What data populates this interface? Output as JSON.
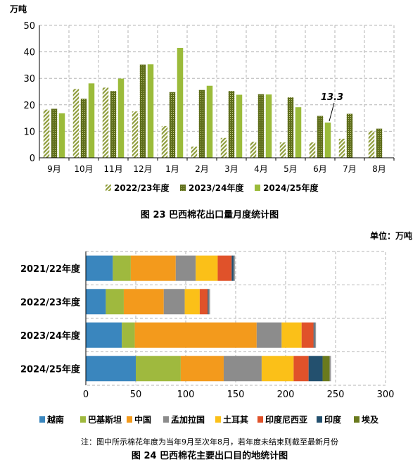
{
  "chart_data": [
    {
      "type": "bar",
      "ylabel": "万吨",
      "ylim": [
        0,
        50
      ],
      "yticks": [
        0,
        10,
        20,
        30,
        40,
        50
      ],
      "grid": true,
      "legend_position": "bottom",
      "categories": [
        "9月",
        "10月",
        "11月",
        "12月",
        "1月",
        "2月",
        "3月",
        "4月",
        "5月",
        "6月",
        "7月",
        "8月"
      ],
      "series": [
        {
          "name": "2022/23年度",
          "color": "#9aa84a",
          "pattern": "hatch",
          "values": [
            18.2,
            26.0,
            26.5,
            17.5,
            12.0,
            4.2,
            7.5,
            6.0,
            5.8,
            5.8,
            7.2,
            10.2
          ]
        },
        {
          "name": "2023/24年度",
          "color": "#6b7a22",
          "pattern": "dots",
          "values": [
            18.5,
            22.3,
            25.2,
            35.2,
            24.8,
            25.6,
            25.2,
            24.0,
            22.8,
            15.8,
            16.6,
            11.0
          ]
        },
        {
          "name": "2024/25年度",
          "color": "#9bbb3a",
          "pattern": "solid",
          "values": [
            16.8,
            28.1,
            29.9,
            35.3,
            41.5,
            27.2,
            23.8,
            23.9,
            19.1,
            13.3,
            null,
            null
          ]
        }
      ],
      "annotation": {
        "text": "13.3",
        "category": "6月",
        "series": "2024/25年度"
      },
      "caption": "图 23   巴西棉花出口量月度统计图"
    },
    {
      "type": "bar",
      "orientation": "horizontal",
      "stacked": true,
      "unit_label": "单位：万吨",
      "xlim": [
        0,
        300
      ],
      "xticks": [
        0,
        50,
        100,
        150,
        200,
        250,
        300
      ],
      "grid": true,
      "legend_position": "bottom",
      "categories": [
        "2021/22年度",
        "2022/23年度",
        "2023/24年度",
        "2024/25年度"
      ],
      "series": [
        {
          "name": "越南",
          "color": "#3a86be",
          "values": [
            27,
            20,
            36,
            50
          ]
        },
        {
          "name": "巴基斯坦",
          "color": "#9fb93e",
          "values": [
            18,
            18,
            13,
            45
          ]
        },
        {
          "name": "中国",
          "color": "#f39a1c",
          "values": [
            45,
            40,
            122,
            43
          ]
        },
        {
          "name": "孟加拉国",
          "color": "#8c8c8c",
          "values": [
            20,
            21,
            25,
            38
          ]
        },
        {
          "name": "土耳其",
          "color": "#fbc018",
          "values": [
            22,
            15,
            20,
            32
          ]
        },
        {
          "name": "印度尼西亚",
          "color": "#e0522a",
          "values": [
            14,
            8,
            12,
            15
          ]
        },
        {
          "name": "印度",
          "color": "#23506e",
          "values": [
            2,
            1,
            1,
            14
          ]
        },
        {
          "name": "埃及",
          "color": "#6a7a1e",
          "values": [
            0,
            0,
            0,
            7
          ]
        }
      ],
      "caption": "图 24   巴西棉花主要出口目的地统计图"
    }
  ],
  "note": "注：图中所示棉花年度为当年9月至次年8月，若年度未结束则截至最新月份"
}
